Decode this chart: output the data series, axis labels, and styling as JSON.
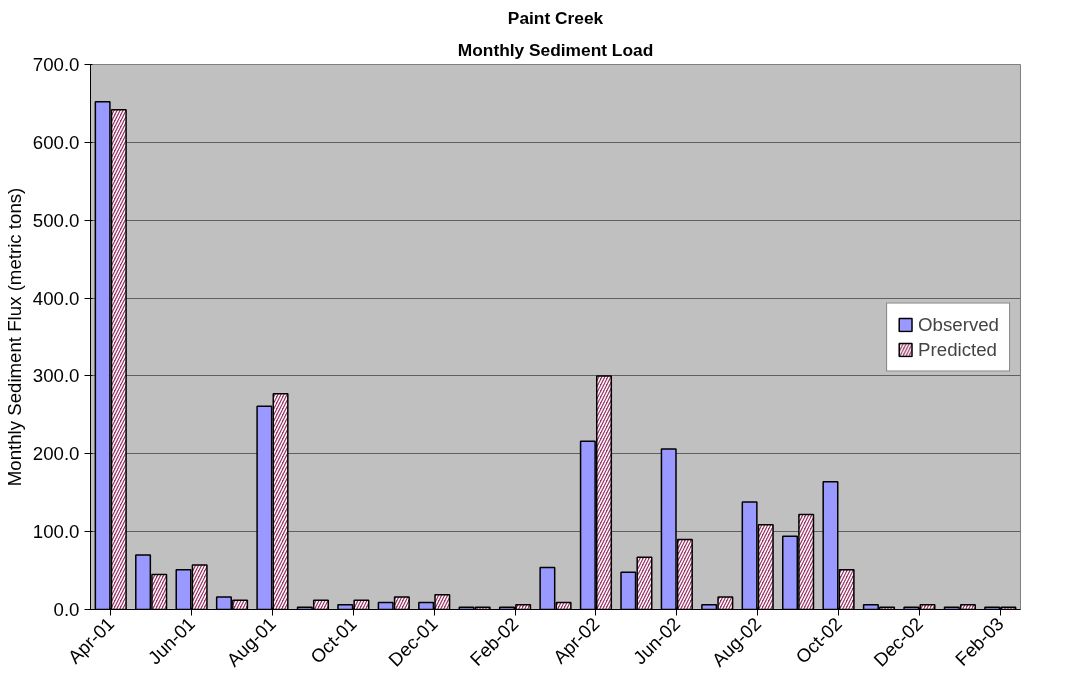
{
  "chart_data": {
    "type": "bar",
    "title": "Paint Creek",
    "subtitle": "Monthly Sediment Load",
    "ylabel": "Monthly Sediment Flux (metric tons)",
    "categories": [
      "Apr-01",
      null,
      "Jun-01",
      null,
      "Aug-01",
      null,
      "Oct-01",
      null,
      "Dec-01",
      null,
      "Feb-02",
      null,
      "Apr-02",
      null,
      "Jun-02",
      null,
      "Aug-02",
      null,
      "Oct-02",
      null,
      "Dec-02",
      null,
      "Feb-03"
    ],
    "series": [
      {
        "name": "Observed",
        "color": "#9999ff",
        "values": [
          652,
          70,
          51,
          16,
          261,
          3,
          6,
          9,
          9,
          3,
          3,
          54,
          216,
          48,
          206,
          6,
          138,
          94,
          164,
          6,
          3,
          3,
          3
        ]
      },
      {
        "name": "Predicted",
        "color": "#993366",
        "values": [
          642,
          45,
          57,
          12,
          277,
          12,
          12,
          16,
          19,
          3,
          6,
          9,
          300,
          67,
          90,
          16,
          109,
          122,
          51,
          3,
          6,
          6,
          3
        ]
      }
    ],
    "ylim": [
      0,
      700
    ],
    "yticks": [
      {
        "value": 0,
        "label": "0.0"
      },
      {
        "value": 100,
        "label": "100.0"
      },
      {
        "value": 200,
        "label": "200.0"
      },
      {
        "value": 300,
        "label": "300.0"
      },
      {
        "value": 400,
        "label": "400.0"
      },
      {
        "value": 500,
        "label": "500.0"
      },
      {
        "value": 600,
        "label": "600.0"
      },
      {
        "value": 700,
        "label": "700.0"
      }
    ],
    "grid": "y",
    "legend": "right"
  }
}
